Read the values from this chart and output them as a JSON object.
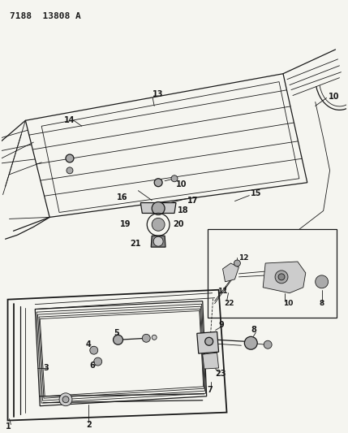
{
  "title": "7188  13808 A",
  "bg_color": "#f5f5f0",
  "line_color": "#1a1a1a",
  "label_color": "#1a1a1a",
  "title_fontsize": 8,
  "label_fontsize": 7,
  "fig_width": 4.29,
  "fig_height": 5.33,
  "dpi": 100,
  "gray1": "#888888",
  "gray2": "#aaaaaa",
  "gray3": "#cccccc",
  "gray4": "#666666"
}
